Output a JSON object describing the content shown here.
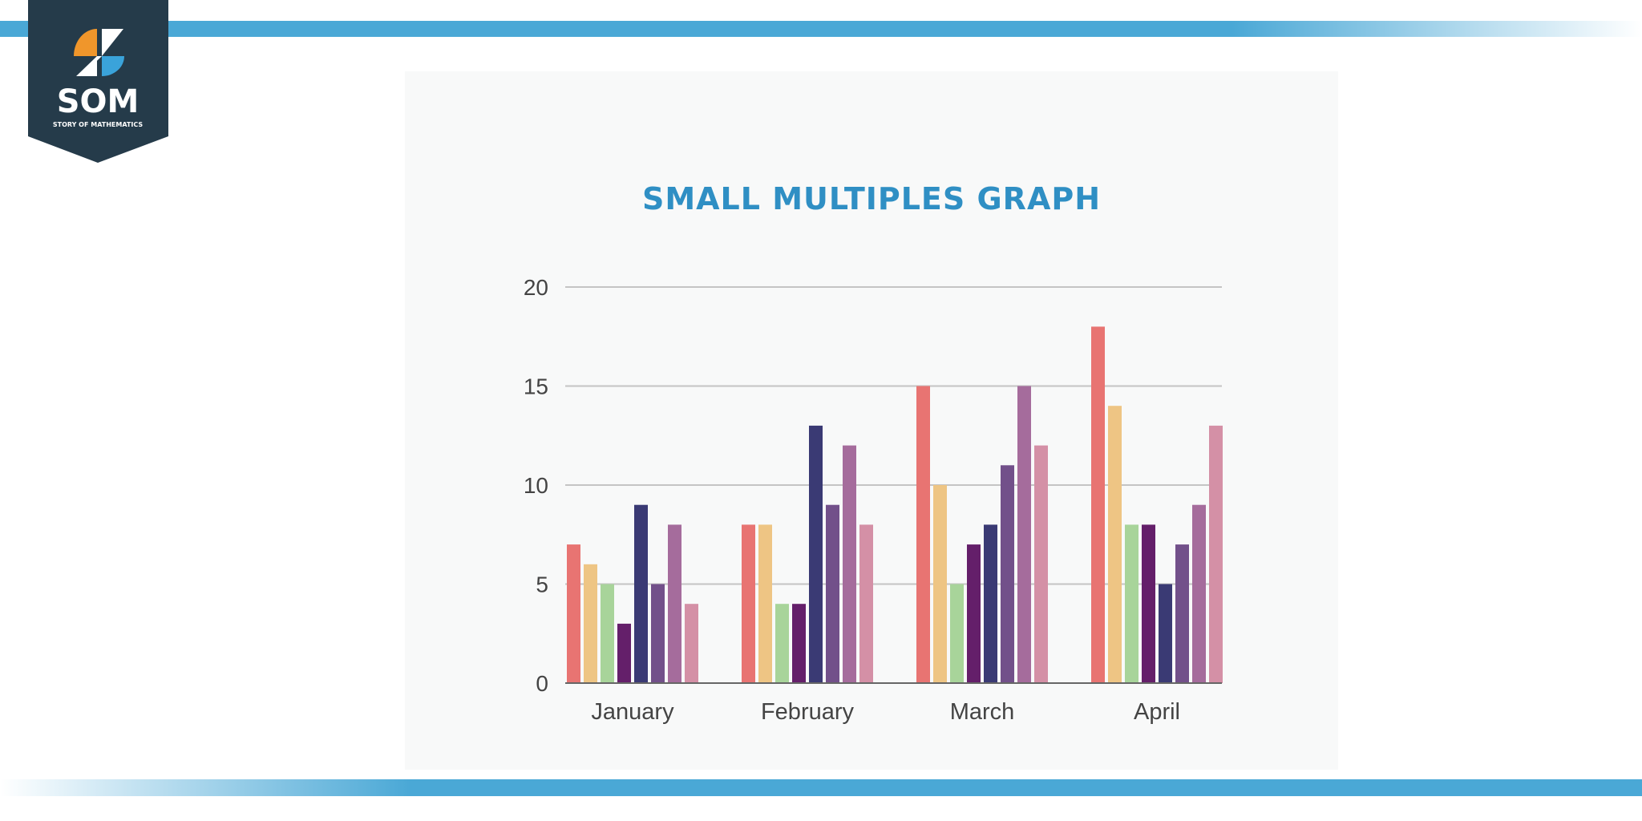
{
  "logo": {
    "text": "SOM",
    "subtext": "STORY OF MATHEMATICS"
  },
  "chart_data": {
    "type": "bar",
    "title": "SMALL MULTIPLES GRAPH",
    "categories": [
      "January",
      "February",
      "March",
      "April"
    ],
    "series": [
      {
        "values": [
          7,
          8,
          15,
          18
        ],
        "color": "#e87472"
      },
      {
        "values": [
          6,
          8,
          10,
          14
        ],
        "color": "#eec584"
      },
      {
        "values": [
          5,
          4,
          5,
          8
        ],
        "color": "#a8d49a"
      },
      {
        "values": [
          3,
          4,
          7,
          8
        ],
        "color": "#641f6a"
      },
      {
        "values": [
          9,
          13,
          8,
          5
        ],
        "color": "#3a3a74"
      },
      {
        "values": [
          5,
          9,
          11,
          7
        ],
        "color": "#72508a"
      },
      {
        "values": [
          8,
          12,
          15,
          9
        ],
        "color": "#a56c9c"
      },
      {
        "values": [
          4,
          8,
          12,
          13
        ],
        "color": "#d490a6"
      }
    ],
    "ylim": [
      0,
      20
    ],
    "yticks": [
      0,
      5,
      10,
      15,
      20
    ],
    "grid": true,
    "xlabel": "",
    "ylabel": ""
  }
}
